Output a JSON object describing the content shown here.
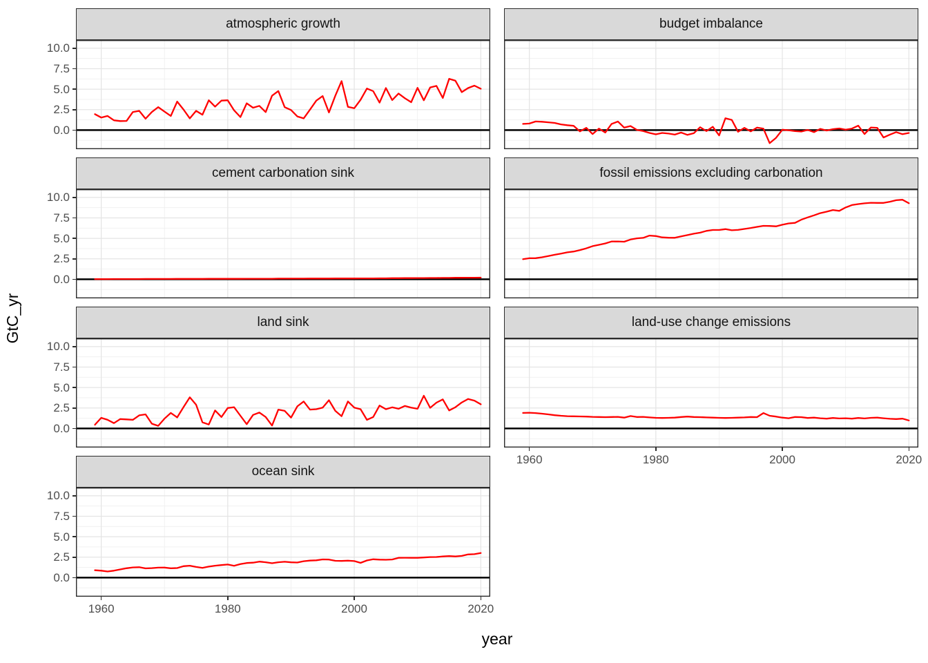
{
  "chart_data": {
    "type": "line",
    "title": "",
    "xlabel": "year",
    "ylabel": "GtC_yr",
    "legend": "none",
    "grid": "on",
    "line_color": "#FF0000",
    "zero_line_color": "#000000",
    "strip_fill": "#D9D9D9",
    "grid_major_color": "#E4E4E4",
    "grid_minor_color": "#EFEFEF",
    "panel_border_color": "#2B2B2B",
    "tick_label_color": "#4D4D4D",
    "x_range": [
      1956,
      2021.5
    ],
    "y_range": [
      -2.33,
      11.0
    ],
    "x_ticks": [
      {
        "value": 1960,
        "label": "1960"
      },
      {
        "value": 1980,
        "label": "1980"
      },
      {
        "value": 2000,
        "label": "2000"
      },
      {
        "value": 2020,
        "label": "2020"
      }
    ],
    "y_ticks": [
      {
        "value": 0,
        "label": "0.0"
      },
      {
        "value": 2.5,
        "label": "2.5"
      },
      {
        "value": 5,
        "label": "5.0"
      },
      {
        "value": 7.5,
        "label": "7.5"
      },
      {
        "value": 10,
        "label": "10.0"
      }
    ],
    "x_minor": [
      1970,
      1990,
      2010
    ],
    "y_minor": [
      -1.25,
      1.25,
      3.75,
      6.25,
      8.75
    ],
    "x_years": {
      "start": 1959,
      "end": 2020
    },
    "facets": [
      {
        "label": "atmospheric growth",
        "values": [
          1.95,
          1.53,
          1.73,
          1.2,
          1.1,
          1.12,
          2.21,
          2.35,
          1.39,
          2.21,
          2.81,
          2.26,
          1.73,
          3.48,
          2.52,
          1.43,
          2.35,
          1.88,
          3.64,
          2.87,
          3.6,
          3.64,
          2.42,
          1.59,
          3.27,
          2.73,
          2.96,
          2.2,
          4.2,
          4.77,
          2.8,
          2.45,
          1.67,
          1.43,
          2.5,
          3.6,
          4.16,
          2.16,
          4.19,
          5.99,
          2.84,
          2.67,
          3.7,
          5.08,
          4.76,
          3.36,
          5.14,
          3.67,
          4.47,
          3.9,
          3.41,
          5.16,
          3.64,
          5.21,
          5.4,
          3.92,
          6.27,
          6.03,
          4.64,
          5.14,
          5.43,
          5.05
        ]
      },
      {
        "label": "budget imbalance",
        "values": [
          0.76,
          0.8,
          1.05,
          1.02,
          0.95,
          0.88,
          0.7,
          0.6,
          0.52,
          -0.15,
          0.28,
          -0.48,
          0.18,
          -0.3,
          0.75,
          1.05,
          0.3,
          0.5,
          0.02,
          -0.12,
          -0.35,
          -0.52,
          -0.35,
          -0.42,
          -0.55,
          -0.3,
          -0.58,
          -0.38,
          0.35,
          -0.12,
          0.4,
          -0.65,
          1.45,
          1.25,
          -0.2,
          0.28,
          -0.15,
          0.3,
          0.18,
          -1.6,
          -0.95,
          0.05,
          -0.02,
          -0.12,
          -0.18,
          0.02,
          -0.25,
          0.15,
          -0.05,
          0.12,
          0.2,
          0.05,
          0.18,
          0.55,
          -0.48,
          0.32,
          0.28,
          -0.9,
          -0.55,
          -0.25,
          -0.5,
          -0.35
        ]
      },
      {
        "label": "cement carbonation sink",
        "values": [
          0.02,
          0.02,
          0.02,
          0.03,
          0.03,
          0.03,
          0.03,
          0.03,
          0.04,
          0.04,
          0.04,
          0.04,
          0.04,
          0.05,
          0.05,
          0.05,
          0.05,
          0.05,
          0.06,
          0.06,
          0.06,
          0.06,
          0.06,
          0.06,
          0.07,
          0.07,
          0.07,
          0.07,
          0.07,
          0.08,
          0.08,
          0.08,
          0.08,
          0.08,
          0.09,
          0.09,
          0.09,
          0.09,
          0.1,
          0.1,
          0.1,
          0.1,
          0.11,
          0.11,
          0.11,
          0.12,
          0.12,
          0.13,
          0.13,
          0.14,
          0.14,
          0.15,
          0.15,
          0.16,
          0.16,
          0.17,
          0.17,
          0.18,
          0.18,
          0.19,
          0.19,
          0.2
        ]
      },
      {
        "label": "fossil emissions excluding carbonation",
        "values": [
          2.45,
          2.57,
          2.58,
          2.69,
          2.83,
          2.99,
          3.13,
          3.29,
          3.39,
          3.57,
          3.78,
          4.05,
          4.21,
          4.38,
          4.61,
          4.62,
          4.59,
          4.86,
          5.0,
          5.06,
          5.34,
          5.28,
          5.12,
          5.08,
          5.07,
          5.24,
          5.4,
          5.57,
          5.69,
          5.91,
          6.02,
          6.02,
          6.12,
          5.99,
          6.03,
          6.15,
          6.27,
          6.4,
          6.53,
          6.51,
          6.47,
          6.66,
          6.82,
          6.89,
          7.28,
          7.56,
          7.81,
          8.08,
          8.26,
          8.46,
          8.36,
          8.77,
          9.07,
          9.19,
          9.28,
          9.35,
          9.33,
          9.33,
          9.47,
          9.66,
          9.72,
          9.29
        ]
      },
      {
        "label": "land sink",
        "values": [
          0.45,
          1.3,
          1.05,
          0.65,
          1.15,
          1.1,
          1.05,
          1.6,
          1.72,
          0.58,
          0.32,
          1.2,
          1.9,
          1.35,
          2.6,
          3.8,
          2.9,
          0.75,
          0.48,
          2.2,
          1.4,
          2.5,
          2.6,
          1.55,
          0.52,
          1.65,
          1.95,
          1.4,
          0.35,
          2.3,
          2.15,
          1.32,
          2.7,
          3.3,
          2.3,
          2.35,
          2.55,
          3.45,
          2.15,
          1.5,
          3.3,
          2.55,
          2.35,
          1.05,
          1.4,
          2.8,
          2.35,
          2.58,
          2.4,
          2.75,
          2.55,
          2.4,
          4.0,
          2.52,
          3.15,
          3.55,
          2.2,
          2.6,
          3.18,
          3.6,
          3.4,
          2.95
        ]
      },
      {
        "label": "land-use change emissions",
        "values": [
          1.9,
          1.92,
          1.88,
          1.8,
          1.72,
          1.62,
          1.55,
          1.5,
          1.48,
          1.47,
          1.45,
          1.42,
          1.4,
          1.38,
          1.4,
          1.42,
          1.32,
          1.52,
          1.4,
          1.42,
          1.35,
          1.3,
          1.28,
          1.3,
          1.32,
          1.4,
          1.45,
          1.4,
          1.38,
          1.35,
          1.32,
          1.3,
          1.28,
          1.3,
          1.32,
          1.35,
          1.4,
          1.38,
          1.88,
          1.55,
          1.45,
          1.32,
          1.25,
          1.4,
          1.38,
          1.28,
          1.32,
          1.25,
          1.2,
          1.28,
          1.22,
          1.25,
          1.2,
          1.28,
          1.22,
          1.3,
          1.32,
          1.25,
          1.18,
          1.15,
          1.2,
          0.98
        ]
      },
      {
        "label": "ocean sink",
        "values": [
          0.9,
          0.85,
          0.75,
          0.85,
          1.0,
          1.15,
          1.25,
          1.27,
          1.13,
          1.16,
          1.22,
          1.23,
          1.14,
          1.17,
          1.4,
          1.46,
          1.31,
          1.19,
          1.35,
          1.46,
          1.53,
          1.6,
          1.45,
          1.65,
          1.79,
          1.83,
          1.96,
          1.88,
          1.76,
          1.88,
          1.94,
          1.87,
          1.85,
          2.01,
          2.08,
          2.12,
          2.23,
          2.21,
          2.06,
          2.04,
          2.07,
          2.02,
          1.8,
          2.1,
          2.24,
          2.2,
          2.18,
          2.22,
          2.42,
          2.43,
          2.42,
          2.42,
          2.46,
          2.51,
          2.52,
          2.59,
          2.63,
          2.59,
          2.66,
          2.83,
          2.87,
          3.0
        ]
      }
    ]
  }
}
